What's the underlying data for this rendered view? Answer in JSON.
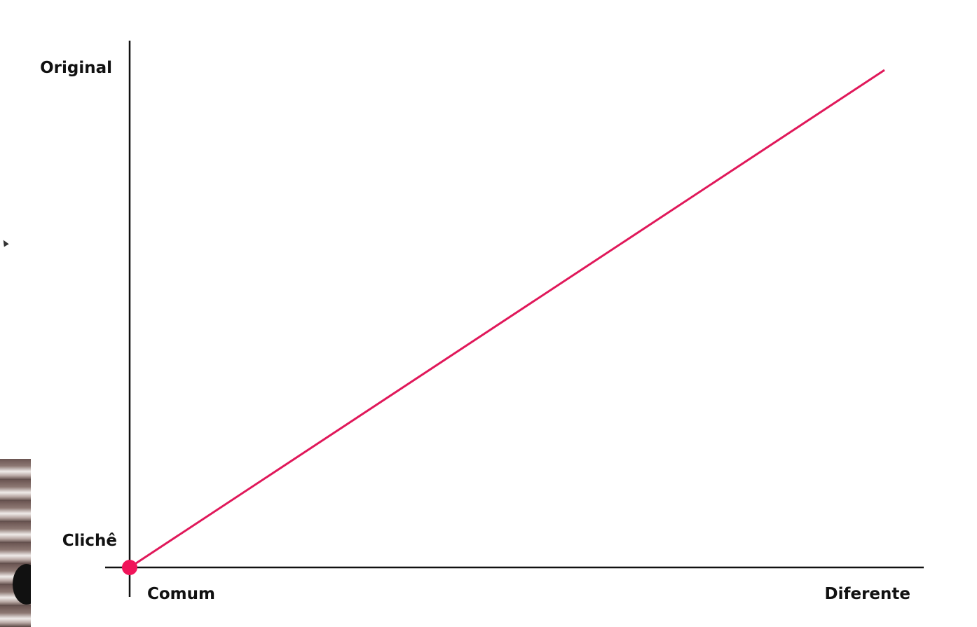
{
  "chart_data": {
    "type": "line",
    "title": "",
    "xlabel": "",
    "ylabel": "",
    "x_tick_labels": [
      "Comum",
      "Diferente"
    ],
    "y_tick_labels": [
      "Clichê",
      "Original"
    ],
    "xlim": [
      0,
      1
    ],
    "ylim": [
      0,
      1
    ],
    "grid": false,
    "legend": "none",
    "series": [
      {
        "x": [
          0,
          1
        ],
        "y": [
          0,
          1
        ],
        "color": "#e0185a"
      }
    ],
    "points": [
      {
        "x": 0,
        "y": 0,
        "color": "#f0145a"
      }
    ]
  },
  "ui": {
    "cursor_icon": "arrow-cursor-icon",
    "webcam_overlay": "webcam-thumbnail"
  }
}
